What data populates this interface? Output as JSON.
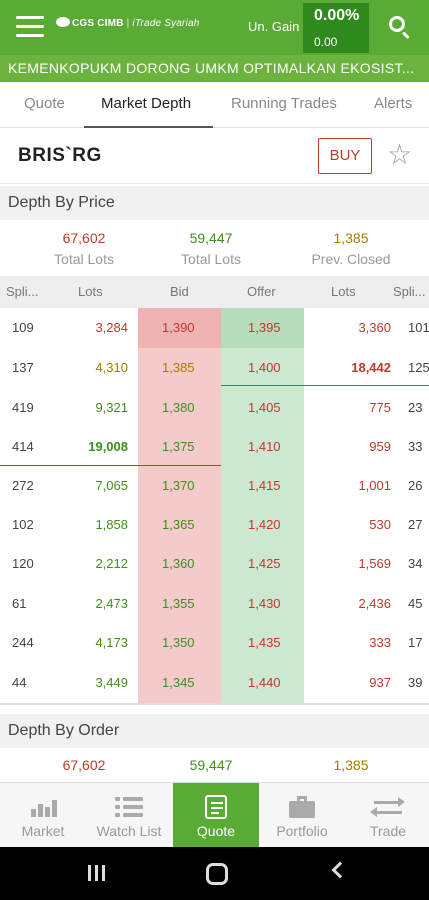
{
  "header": {
    "logo_brand": "CGS CIMB",
    "logo_sub": "iTrade Syariah",
    "un_gain_label": "Un. Gain",
    "un_gain_pct": "0.00%",
    "un_gain_value": "0.00"
  },
  "ticker": {
    "text": "KEMENKOPUKM DORONG UMKM OPTIMALKAN EKOSIST..."
  },
  "tabs": [
    {
      "label": "Quote"
    },
    {
      "label": "Market Depth"
    },
    {
      "label": "Running Trades"
    },
    {
      "label": "Alerts"
    }
  ],
  "stock": {
    "code": "BRIS`RG",
    "buy_label": "BUY",
    "star_icon": "star-outline-icon"
  },
  "depth_by_price": {
    "title": "Depth By Price",
    "summary": [
      {
        "value": "67,602",
        "label": "Total Lots"
      },
      {
        "value": "59,447",
        "label": "Total Lots"
      },
      {
        "value": "1,385",
        "label": "Prev. Closed"
      }
    ],
    "columns": {
      "bid_split": "Spli...",
      "bid_lots": "Lots",
      "bid": "Bid",
      "offer": "Offer",
      "offer_lots": "Lots",
      "offer_split": "Spli..."
    },
    "rows": [
      {
        "bid_split": "109",
        "bid_lots": "3,284",
        "bid": "1,390",
        "offer": "1,395",
        "offer_lots": "3,360",
        "offer_split": "101"
      },
      {
        "bid_split": "137",
        "bid_lots": "4,310",
        "bid": "1,385",
        "offer": "1,400",
        "offer_lots": "18,442",
        "offer_split": "125"
      },
      {
        "bid_split": "419",
        "bid_lots": "9,321",
        "bid": "1,380",
        "offer": "1,405",
        "offer_lots": "775",
        "offer_split": "23"
      },
      {
        "bid_split": "414",
        "bid_lots": "19,008",
        "bid": "1,375",
        "offer": "1,410",
        "offer_lots": "959",
        "offer_split": "33"
      },
      {
        "bid_split": "272",
        "bid_lots": "7,065",
        "bid": "1,370",
        "offer": "1,415",
        "offer_lots": "1,001",
        "offer_split": "26"
      },
      {
        "bid_split": "102",
        "bid_lots": "1,858",
        "bid": "1,365",
        "offer": "1,420",
        "offer_lots": "530",
        "offer_split": "27"
      },
      {
        "bid_split": "120",
        "bid_lots": "2,212",
        "bid": "1,360",
        "offer": "1,425",
        "offer_lots": "1,569",
        "offer_split": "34"
      },
      {
        "bid_split": "61",
        "bid_lots": "2,473",
        "bid": "1,355",
        "offer": "1,430",
        "offer_lots": "2,436",
        "offer_split": "45"
      },
      {
        "bid_split": "244",
        "bid_lots": "4,173",
        "bid": "1,350",
        "offer": "1,435",
        "offer_lots": "333",
        "offer_split": "17"
      },
      {
        "bid_split": "44",
        "bid_lots": "3,449",
        "bid": "1,345",
        "offer": "1,440",
        "offer_lots": "937",
        "offer_split": "39"
      }
    ]
  },
  "depth_by_order": {
    "title": "Depth By Order",
    "summary": [
      {
        "value": "67,602"
      },
      {
        "value": "59,447"
      },
      {
        "value": "1,385"
      }
    ]
  },
  "bottom_nav": [
    {
      "label": "Market",
      "icon": "bar-chart-icon"
    },
    {
      "label": "Watch List",
      "icon": "list-icon"
    },
    {
      "label": "Quote",
      "icon": "quote-document-icon"
    },
    {
      "label": "Portfolio",
      "icon": "briefcase-icon"
    },
    {
      "label": "Trade",
      "icon": "swap-arrows-icon"
    }
  ],
  "colors": {
    "brand_green": "#5aab35",
    "gain_box": "#2f8a1e",
    "up_red": "#c0392b",
    "up_green": "#3f8f1b",
    "neutral_amber": "#a67c00",
    "bid_bg": "#f5caca",
    "offer_bg": "#cde8d1"
  }
}
